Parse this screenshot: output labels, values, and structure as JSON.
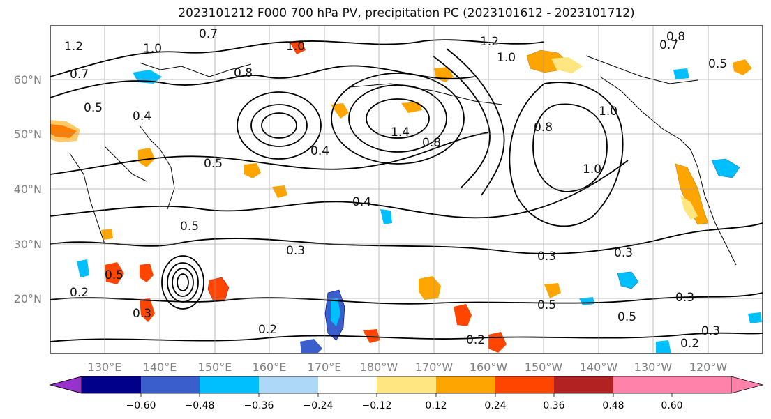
{
  "title": "2023101212 F000 700 hPa PV, precipitation PC (2023101612 - 2023101712)",
  "latitude_labels": [
    "60°N",
    "50°N",
    "40°N",
    "30°N",
    "20°N"
  ],
  "longitude_labels": [
    "130°E",
    "140°E",
    "150°E",
    "160°E",
    "170°E",
    "180°W",
    "170°W",
    "160°W",
    "150°W",
    "140°W",
    "130°W",
    "120°W"
  ],
  "colorbar": {
    "colors": [
      "#9932cc",
      "#00008b",
      "#3a5fcd",
      "#00bfff",
      "#add8f7",
      "#ffffff",
      "#ffe680",
      "#ffa500",
      "#ff4500",
      "#b22222",
      "#ff82ab"
    ],
    "tick_labels": [
      "−0.60",
      "−0.48",
      "−0.36",
      "−0.24",
      "−0.12",
      "0.12",
      "0.24",
      "0.36",
      "0.48",
      "0.60"
    ]
  },
  "contour_labels": [
    {
      "text": "1.2"
    },
    {
      "text": "1.0"
    },
    {
      "text": "0.7"
    },
    {
      "text": "1.0"
    },
    {
      "text": "0.8"
    },
    {
      "text": "0.7"
    },
    {
      "text": "1.2"
    },
    {
      "text": "1.0"
    },
    {
      "text": "0.5"
    },
    {
      "text": "0.4"
    },
    {
      "text": "0.5"
    },
    {
      "text": "0.4"
    },
    {
      "text": "1.4"
    },
    {
      "text": "0.8"
    },
    {
      "text": "0.8"
    },
    {
      "text": "1.0"
    },
    {
      "text": "1.0"
    },
    {
      "text": "0.4"
    },
    {
      "text": "0.5"
    },
    {
      "text": "0.3"
    },
    {
      "text": "0.3"
    },
    {
      "text": "0.3"
    },
    {
      "text": "0.5"
    },
    {
      "text": "0.5"
    },
    {
      "text": "0.3"
    },
    {
      "text": "0.3"
    },
    {
      "text": "0.2"
    },
    {
      "text": "0.2"
    },
    {
      "text": "0.2"
    },
    {
      "text": "0.3"
    },
    {
      "text": "0.2"
    },
    {
      "text": "0.5"
    },
    {
      "text": "0.7"
    },
    {
      "text": "0.8"
    },
    {
      "text": "0.5"
    }
  ]
}
